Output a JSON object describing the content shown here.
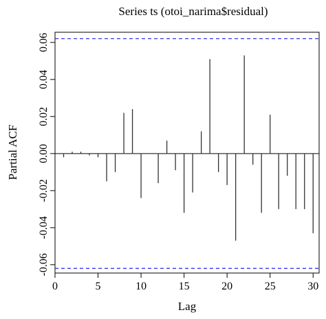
{
  "chart_data": {
    "type": "bar",
    "title": "Series ts (otoi_narima$residual)",
    "xlabel": "Lag",
    "ylabel": "Partial ACF",
    "xlim": [
      0,
      30.7
    ],
    "ylim": [
      -0.0645,
      0.0655
    ],
    "x_ticks": [
      0,
      5,
      10,
      15,
      20,
      25,
      30
    ],
    "y_ticks": [
      -0.06,
      -0.04,
      -0.02,
      0.0,
      0.02,
      0.04,
      0.06
    ],
    "y_tick_labels": [
      "-0.06",
      "-0.04",
      "-0.02",
      "0.00",
      "0.02",
      "0.04",
      "0.06"
    ],
    "confidence_bound": 0.062,
    "grid": false,
    "colors": {
      "spikes": "#333333",
      "bounds": "#2222ee",
      "zero_line": "#000000"
    },
    "lags": [
      1,
      2,
      3,
      4,
      5,
      6,
      7,
      8,
      9,
      10,
      11,
      12,
      13,
      14,
      15,
      16,
      17,
      18,
      19,
      20,
      21,
      22,
      23,
      24,
      25,
      26,
      27,
      28,
      29,
      30
    ],
    "values": [
      -0.002,
      0.001,
      0.001,
      -0.001,
      -0.002,
      -0.015,
      -0.01,
      0.022,
      0.024,
      -0.024,
      0.0,
      -0.016,
      0.007,
      -0.009,
      -0.032,
      -0.021,
      0.012,
      0.051,
      -0.01,
      -0.017,
      -0.047,
      0.053,
      -0.006,
      -0.032,
      0.021,
      -0.03,
      -0.012,
      -0.03,
      -0.03,
      -0.043
    ]
  }
}
